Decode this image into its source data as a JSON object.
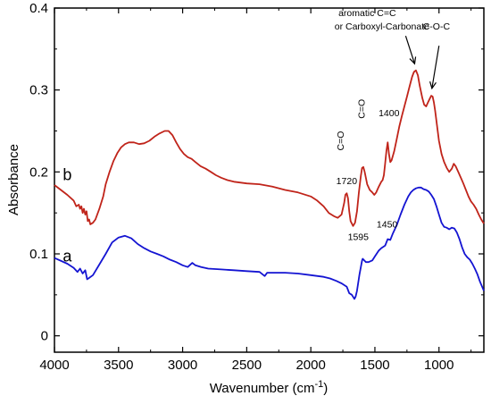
{
  "chart_data": {
    "type": "line",
    "xlabel_main": "Wavenumber (cm",
    "xlabel_sup": "-1",
    "xlabel_end": ")",
    "ylabel": "Absorbance",
    "xlim": [
      4000,
      650
    ],
    "ylim": [
      -0.02,
      0.4
    ],
    "x_reversed": true,
    "grid": false,
    "x_ticks": [
      4000,
      3500,
      3000,
      2500,
      2000,
      1500,
      1000
    ],
    "x_tick_labels": [
      "4000",
      "3500",
      "3000",
      "2500",
      "2000",
      "1500",
      "1000"
    ],
    "y_ticks": [
      0,
      0.1,
      0.2,
      0.3,
      0.4
    ],
    "y_tick_labels": [
      "0",
      "0.1",
      "0.2",
      "0.3",
      "0.4"
    ],
    "series": [
      {
        "name": "a",
        "color": "#1414d2",
        "points": [
          [
            4000,
            0.095
          ],
          [
            3900,
            0.088
          ],
          [
            3850,
            0.083
          ],
          [
            3820,
            0.078
          ],
          [
            3800,
            0.082
          ],
          [
            3780,
            0.076
          ],
          [
            3760,
            0.08
          ],
          [
            3745,
            0.069
          ],
          [
            3735,
            0.07
          ],
          [
            3700,
            0.074
          ],
          [
            3650,
            0.087
          ],
          [
            3600,
            0.1
          ],
          [
            3550,
            0.114
          ],
          [
            3500,
            0.12
          ],
          [
            3450,
            0.122
          ],
          [
            3400,
            0.119
          ],
          [
            3350,
            0.112
          ],
          [
            3300,
            0.107
          ],
          [
            3250,
            0.103
          ],
          [
            3200,
            0.1
          ],
          [
            3150,
            0.097
          ],
          [
            3100,
            0.093
          ],
          [
            3050,
            0.09
          ],
          [
            3000,
            0.086
          ],
          [
            2960,
            0.084
          ],
          [
            2925,
            0.089
          ],
          [
            2900,
            0.086
          ],
          [
            2855,
            0.084
          ],
          [
            2800,
            0.082
          ],
          [
            2700,
            0.081
          ],
          [
            2600,
            0.08
          ],
          [
            2500,
            0.079
          ],
          [
            2400,
            0.078
          ],
          [
            2360,
            0.073
          ],
          [
            2340,
            0.077
          ],
          [
            2300,
            0.077
          ],
          [
            2200,
            0.077
          ],
          [
            2100,
            0.076
          ],
          [
            2000,
            0.074
          ],
          [
            1900,
            0.072
          ],
          [
            1850,
            0.07
          ],
          [
            1800,
            0.067
          ],
          [
            1760,
            0.064
          ],
          [
            1720,
            0.06
          ],
          [
            1700,
            0.052
          ],
          [
            1680,
            0.05
          ],
          [
            1660,
            0.045
          ],
          [
            1650,
            0.048
          ],
          [
            1640,
            0.055
          ],
          [
            1620,
            0.075
          ],
          [
            1600,
            0.092
          ],
          [
            1595,
            0.094
          ],
          [
            1570,
            0.09
          ],
          [
            1550,
            0.09
          ],
          [
            1520,
            0.092
          ],
          [
            1500,
            0.097
          ],
          [
            1470,
            0.104
          ],
          [
            1450,
            0.107
          ],
          [
            1420,
            0.11
          ],
          [
            1400,
            0.118
          ],
          [
            1380,
            0.117
          ],
          [
            1360,
            0.125
          ],
          [
            1330,
            0.135
          ],
          [
            1300,
            0.148
          ],
          [
            1270,
            0.16
          ],
          [
            1240,
            0.17
          ],
          [
            1220,
            0.175
          ],
          [
            1200,
            0.178
          ],
          [
            1180,
            0.18
          ],
          [
            1160,
            0.181
          ],
          [
            1140,
            0.181
          ],
          [
            1120,
            0.179
          ],
          [
            1100,
            0.178
          ],
          [
            1080,
            0.176
          ],
          [
            1060,
            0.172
          ],
          [
            1040,
            0.167
          ],
          [
            1020,
            0.158
          ],
          [
            1000,
            0.148
          ],
          [
            980,
            0.138
          ],
          [
            960,
            0.133
          ],
          [
            940,
            0.132
          ],
          [
            920,
            0.13
          ],
          [
            900,
            0.132
          ],
          [
            880,
            0.131
          ],
          [
            860,
            0.126
          ],
          [
            840,
            0.118
          ],
          [
            820,
            0.108
          ],
          [
            800,
            0.1
          ],
          [
            780,
            0.096
          ],
          [
            760,
            0.093
          ],
          [
            740,
            0.088
          ],
          [
            720,
            0.082
          ],
          [
            700,
            0.075
          ],
          [
            680,
            0.066
          ],
          [
            650,
            0.055
          ]
        ]
      },
      {
        "name": "b",
        "color": "#c0241a",
        "points": [
          [
            4000,
            0.184
          ],
          [
            3950,
            0.178
          ],
          [
            3900,
            0.172
          ],
          [
            3850,
            0.165
          ],
          [
            3830,
            0.158
          ],
          [
            3810,
            0.16
          ],
          [
            3800,
            0.155
          ],
          [
            3790,
            0.158
          ],
          [
            3780,
            0.15
          ],
          [
            3770,
            0.155
          ],
          [
            3760,
            0.148
          ],
          [
            3750,
            0.152
          ],
          [
            3740,
            0.14
          ],
          [
            3730,
            0.142
          ],
          [
            3720,
            0.136
          ],
          [
            3700,
            0.138
          ],
          [
            3680,
            0.142
          ],
          [
            3650,
            0.155
          ],
          [
            3620,
            0.17
          ],
          [
            3600,
            0.185
          ],
          [
            3570,
            0.2
          ],
          [
            3540,
            0.213
          ],
          [
            3510,
            0.223
          ],
          [
            3480,
            0.23
          ],
          [
            3450,
            0.234
          ],
          [
            3420,
            0.236
          ],
          [
            3380,
            0.236
          ],
          [
            3340,
            0.234
          ],
          [
            3300,
            0.235
          ],
          [
            3260,
            0.238
          ],
          [
            3220,
            0.243
          ],
          [
            3180,
            0.247
          ],
          [
            3140,
            0.25
          ],
          [
            3110,
            0.25
          ],
          [
            3080,
            0.245
          ],
          [
            3050,
            0.236
          ],
          [
            3020,
            0.228
          ],
          [
            2990,
            0.222
          ],
          [
            2960,
            0.218
          ],
          [
            2930,
            0.216
          ],
          [
            2900,
            0.212
          ],
          [
            2860,
            0.207
          ],
          [
            2820,
            0.204
          ],
          [
            2780,
            0.2
          ],
          [
            2740,
            0.196
          ],
          [
            2700,
            0.193
          ],
          [
            2650,
            0.19
          ],
          [
            2600,
            0.188
          ],
          [
            2500,
            0.186
          ],
          [
            2400,
            0.185
          ],
          [
            2300,
            0.182
          ],
          [
            2200,
            0.178
          ],
          [
            2100,
            0.175
          ],
          [
            2000,
            0.17
          ],
          [
            1950,
            0.165
          ],
          [
            1900,
            0.158
          ],
          [
            1860,
            0.15
          ],
          [
            1820,
            0.146
          ],
          [
            1790,
            0.144
          ],
          [
            1760,
            0.148
          ],
          [
            1740,
            0.162
          ],
          [
            1730,
            0.172
          ],
          [
            1720,
            0.174
          ],
          [
            1710,
            0.168
          ],
          [
            1700,
            0.152
          ],
          [
            1690,
            0.14
          ],
          [
            1670,
            0.134
          ],
          [
            1655,
            0.138
          ],
          [
            1640,
            0.152
          ],
          [
            1625,
            0.175
          ],
          [
            1610,
            0.195
          ],
          [
            1600,
            0.205
          ],
          [
            1590,
            0.206
          ],
          [
            1580,
            0.2
          ],
          [
            1560,
            0.185
          ],
          [
            1540,
            0.178
          ],
          [
            1520,
            0.175
          ],
          [
            1505,
            0.172
          ],
          [
            1490,
            0.175
          ],
          [
            1470,
            0.182
          ],
          [
            1450,
            0.188
          ],
          [
            1440,
            0.19
          ],
          [
            1430,
            0.196
          ],
          [
            1420,
            0.21
          ],
          [
            1410,
            0.226
          ],
          [
            1400,
            0.236
          ],
          [
            1390,
            0.222
          ],
          [
            1380,
            0.212
          ],
          [
            1370,
            0.214
          ],
          [
            1350,
            0.225
          ],
          [
            1330,
            0.24
          ],
          [
            1310,
            0.255
          ],
          [
            1290,
            0.268
          ],
          [
            1270,
            0.28
          ],
          [
            1250,
            0.292
          ],
          [
            1230,
            0.304
          ],
          [
            1210,
            0.316
          ],
          [
            1195,
            0.322
          ],
          [
            1180,
            0.324
          ],
          [
            1165,
            0.318
          ],
          [
            1150,
            0.305
          ],
          [
            1130,
            0.29
          ],
          [
            1115,
            0.282
          ],
          [
            1100,
            0.28
          ],
          [
            1085,
            0.285
          ],
          [
            1070,
            0.29
          ],
          [
            1060,
            0.293
          ],
          [
            1050,
            0.292
          ],
          [
            1040,
            0.285
          ],
          [
            1030,
            0.275
          ],
          [
            1020,
            0.262
          ],
          [
            1010,
            0.25
          ],
          [
            1000,
            0.238
          ],
          [
            980,
            0.222
          ],
          [
            960,
            0.212
          ],
          [
            940,
            0.205
          ],
          [
            920,
            0.2
          ],
          [
            900,
            0.204
          ],
          [
            885,
            0.21
          ],
          [
            870,
            0.207
          ],
          [
            850,
            0.2
          ],
          [
            830,
            0.193
          ],
          [
            810,
            0.186
          ],
          [
            790,
            0.178
          ],
          [
            770,
            0.17
          ],
          [
            750,
            0.164
          ],
          [
            730,
            0.16
          ],
          [
            710,
            0.155
          ],
          [
            690,
            0.148
          ],
          [
            670,
            0.142
          ],
          [
            650,
            0.137
          ]
        ]
      }
    ],
    "series_tags": [
      {
        "text": "a",
        "x": 3900,
        "y": 0.091
      },
      {
        "text": "b",
        "x": 3900,
        "y": 0.19
      }
    ],
    "annotations": [
      {
        "text": "1720",
        "x": 1720,
        "y": 0.185,
        "rotate": 0
      },
      {
        "text": "C=O",
        "x": 1745,
        "y": 0.238,
        "rotate": -90
      },
      {
        "text": "C=O",
        "x": 1580,
        "y": 0.277,
        "rotate": -90
      },
      {
        "text": "1400",
        "x": 1390,
        "y": 0.268,
        "rotate": 0
      },
      {
        "text": "1595",
        "x": 1630,
        "y": 0.117,
        "rotate": 0
      },
      {
        "text": "1450",
        "x": 1405,
        "y": 0.132,
        "rotate": 0
      },
      {
        "text": "aromatic C=C",
        "x": 1560,
        "y": 0.39,
        "rotate": 0
      },
      {
        "text": "or Carboxyl-Carbonate",
        "x": 1445,
        "y": 0.374,
        "rotate": 0
      },
      {
        "text": "C-O-C",
        "x": 1020,
        "y": 0.374,
        "rotate": 0
      }
    ],
    "arrows": [
      {
        "from": [
          1260,
          0.366
        ],
        "to": [
          1190,
          0.332
        ]
      },
      {
        "from": [
          1000,
          0.354
        ],
        "to": [
          1055,
          0.302
        ]
      }
    ]
  }
}
